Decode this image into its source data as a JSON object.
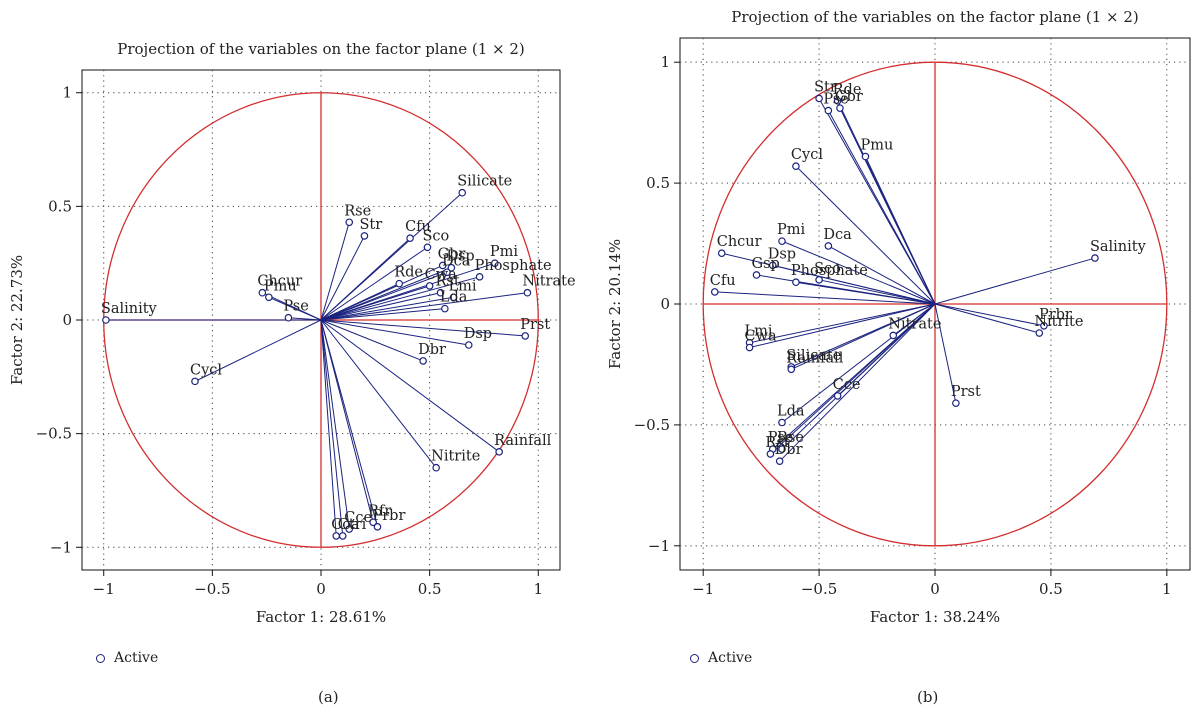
{
  "chart_data": [
    {
      "type": "scatter",
      "title": "Projection of the variables on the factor plane (1 × 2)",
      "xlabel": "Factor 1: 28.61%",
      "ylabel": "Factor 2: 22.73%",
      "xlim": [
        -1.1,
        1.1
      ],
      "ylim": [
        -1.1,
        1.1
      ],
      "xticks": [
        -1,
        -0.5,
        0,
        0.5,
        1
      ],
      "yticks": [
        -1,
        -0.5,
        0,
        0.5,
        1
      ],
      "xtick_labels": [
        "−1",
        "−0.5",
        "0",
        "0.5",
        "1"
      ],
      "ytick_labels": [
        "−1",
        "−0.5",
        "0",
        "0.5",
        "1"
      ],
      "legend": "Active",
      "legend_position": "bottom-left",
      "panel_label": "(a)",
      "points": [
        {
          "label": "Salinity",
          "x": -0.99,
          "y": 0.0
        },
        {
          "label": "Cycl",
          "x": -0.58,
          "y": -0.27
        },
        {
          "label": "Chcur",
          "x": -0.27,
          "y": 0.12
        },
        {
          "label": "Pmu",
          "x": -0.24,
          "y": 0.1
        },
        {
          "label": "Pse",
          "x": -0.15,
          "y": 0.01
        },
        {
          "label": "Rse",
          "x": 0.13,
          "y": 0.43
        },
        {
          "label": "Str",
          "x": 0.2,
          "y": 0.37
        },
        {
          "label": "Cfu",
          "x": 0.41,
          "y": 0.36
        },
        {
          "label": "Sco",
          "x": 0.49,
          "y": 0.32
        },
        {
          "label": "Silicate",
          "x": 0.65,
          "y": 0.56
        },
        {
          "label": "Gbr",
          "x": 0.56,
          "y": 0.24
        },
        {
          "label": "Pmi",
          "x": 0.8,
          "y": 0.25
        },
        {
          "label": "Rde",
          "x": 0.36,
          "y": 0.16
        },
        {
          "label": "Phosphate",
          "x": 0.73,
          "y": 0.19
        },
        {
          "label": "Dsp",
          "x": 0.6,
          "y": 0.23
        },
        {
          "label": "Dca",
          "x": 0.58,
          "y": 0.21
        },
        {
          "label": "Cwa",
          "x": 0.5,
          "y": 0.15
        },
        {
          "label": "Rst",
          "x": 0.55,
          "y": 0.12
        },
        {
          "label": "Lmi",
          "x": 0.61,
          "y": 0.1
        },
        {
          "label": "Nitrate",
          "x": 0.95,
          "y": 0.12
        },
        {
          "label": "Lda",
          "x": 0.57,
          "y": 0.05
        },
        {
          "label": "Dsp",
          "x": 0.68,
          "y": -0.11
        },
        {
          "label": "Dbr",
          "x": 0.47,
          "y": -0.18
        },
        {
          "label": "Prst",
          "x": 0.94,
          "y": -0.07
        },
        {
          "label": "Rainfall",
          "x": 0.82,
          "y": -0.58
        },
        {
          "label": "Nitrite",
          "x": 0.53,
          "y": -0.65
        },
        {
          "label": "Prbr",
          "x": 0.26,
          "y": -0.91
        },
        {
          "label": "Rfr",
          "x": 0.24,
          "y": -0.89
        },
        {
          "label": "Cce",
          "x": 0.13,
          "y": -0.92
        },
        {
          "label": "Ctri",
          "x": 0.1,
          "y": -0.95
        },
        {
          "label": "Coa",
          "x": 0.07,
          "y": -0.95
        }
      ]
    },
    {
      "type": "scatter",
      "title": "Projection of the variables on the factor plane (1 × 2)",
      "xlabel": "Factor 1: 38.24%",
      "ylabel": "Factor 2: 20.14%",
      "xlim": [
        -1.1,
        1.1
      ],
      "ylim": [
        -1.1,
        1.1
      ],
      "xticks": [
        -1,
        -0.5,
        0,
        0.5,
        1
      ],
      "yticks": [
        -1,
        -0.5,
        0,
        0.5,
        1
      ],
      "xtick_labels": [
        "−1",
        "−0.5",
        "0",
        "0.5",
        "1"
      ],
      "ytick_labels": [
        "−1",
        "−0.5",
        "0",
        "0.5",
        "1"
      ],
      "legend": "Active",
      "legend_position": "bottom-left",
      "panel_label": "(b)",
      "points": [
        {
          "label": "Str",
          "x": -0.5,
          "y": 0.85
        },
        {
          "label": "Rde",
          "x": -0.42,
          "y": 0.84
        },
        {
          "label": "Pse",
          "x": -0.46,
          "y": 0.8
        },
        {
          "label": "Gbr",
          "x": -0.41,
          "y": 0.81
        },
        {
          "label": "Pmu",
          "x": -0.3,
          "y": 0.61
        },
        {
          "label": "Cycl",
          "x": -0.6,
          "y": 0.57
        },
        {
          "label": "Chcur",
          "x": -0.92,
          "y": 0.21
        },
        {
          "label": "Pmi",
          "x": -0.66,
          "y": 0.26
        },
        {
          "label": "Dca",
          "x": -0.46,
          "y": 0.24
        },
        {
          "label": "Dsp",
          "x": -0.7,
          "y": 0.16
        },
        {
          "label": "Cfu",
          "x": -0.95,
          "y": 0.05
        },
        {
          "label": "Sco",
          "x": -0.5,
          "y": 0.1
        },
        {
          "label": "Phosphate",
          "x": -0.6,
          "y": 0.09
        },
        {
          "label": "Gsp",
          "x": -0.77,
          "y": 0.12
        },
        {
          "label": "Salinity",
          "x": 0.69,
          "y": 0.19
        },
        {
          "label": "Prbr",
          "x": 0.47,
          "y": -0.09
        },
        {
          "label": "Nitrite",
          "x": 0.45,
          "y": -0.12
        },
        {
          "label": "Nitrate",
          "x": -0.18,
          "y": -0.13
        },
        {
          "label": "Lmi",
          "x": -0.8,
          "y": -0.16
        },
        {
          "label": "Cwa",
          "x": -0.8,
          "y": -0.18
        },
        {
          "label": "Silicate",
          "x": -0.62,
          "y": -0.26
        },
        {
          "label": "Rainfall",
          "x": -0.62,
          "y": -0.27
        },
        {
          "label": "Prst",
          "x": 0.09,
          "y": -0.41
        },
        {
          "label": "Cce",
          "x": -0.42,
          "y": -0.38
        },
        {
          "label": "Lda",
          "x": -0.66,
          "y": -0.49
        },
        {
          "label": "Pse",
          "x": -0.7,
          "y": -0.6
        },
        {
          "label": "Rst",
          "x": -0.71,
          "y": -0.62
        },
        {
          "label": "Rse",
          "x": -0.66,
          "y": -0.6
        },
        {
          "label": "Dbr",
          "x": -0.67,
          "y": -0.65
        }
      ]
    }
  ]
}
